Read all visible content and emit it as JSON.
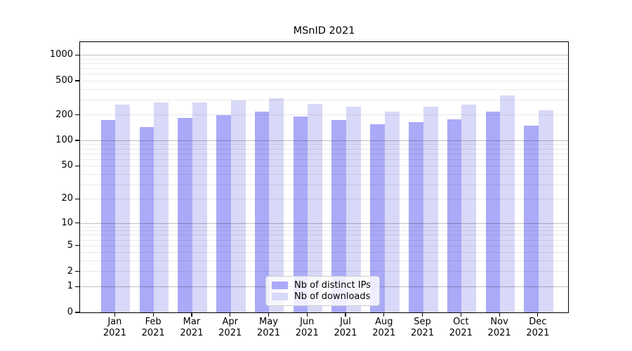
{
  "title": "MSnID 2021",
  "chart_data": {
    "type": "bar",
    "title": "MSnID 2021",
    "categories": [
      "Jan 2021",
      "Feb 2021",
      "Mar 2021",
      "Apr 2021",
      "May 2021",
      "Jun 2021",
      "Jul 2021",
      "Aug 2021",
      "Sep 2021",
      "Oct 2021",
      "Nov 2021",
      "Dec 2021"
    ],
    "series": [
      {
        "name": "Nb of distinct IPs",
        "color": "#aaaaf8",
        "values": [
          174,
          144,
          182,
          199,
          218,
          189,
          174,
          155,
          164,
          177,
          219,
          148
        ]
      },
      {
        "name": "Nb of downloads",
        "color": "#d8d8f8",
        "values": [
          260,
          277,
          280,
          295,
          314,
          268,
          248,
          217,
          246,
          263,
          333,
          225
        ]
      }
    ],
    "xlabel": "",
    "ylabel": "",
    "y_scale": "log10(1+x)",
    "ylim": [
      0,
      1450
    ],
    "y_tick_values": [
      0,
      1,
      2,
      5,
      10,
      20,
      50,
      100,
      200,
      500,
      1000
    ],
    "y_tick_labels": [
      "0",
      "1",
      "2",
      "5",
      "10",
      "20",
      "50",
      "100",
      "200",
      "500",
      "1000"
    ],
    "minor_gridlines": [
      2,
      3,
      4,
      5,
      6,
      7,
      8,
      9,
      20,
      30,
      40,
      50,
      60,
      70,
      80,
      90,
      200,
      300,
      400,
      500,
      600,
      700,
      800,
      900
    ],
    "major_gridlines": [
      1,
      10,
      100,
      1000
    ],
    "grid": true,
    "legend_position": "lower center",
    "background_color": "#ffffff",
    "spine_color": "#000000"
  }
}
